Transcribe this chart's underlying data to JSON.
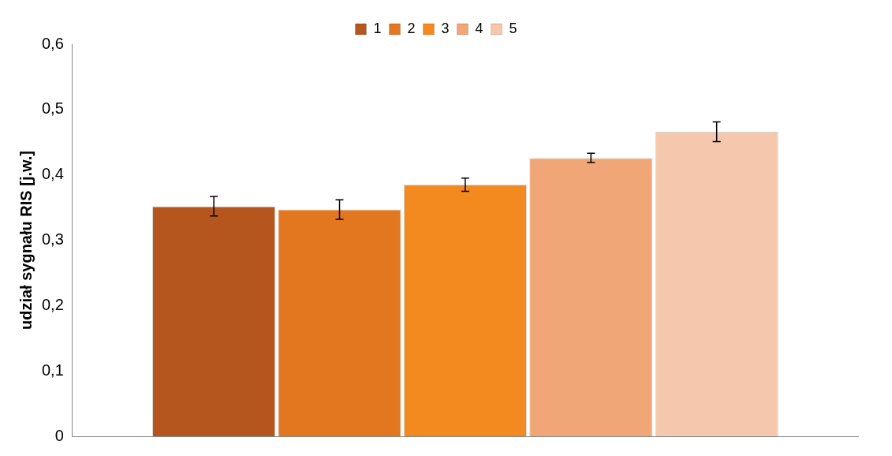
{
  "chart_data": {
    "type": "bar",
    "ylabel": "udział sygnału RIS [j.w.]",
    "categories": [
      null
    ],
    "series": [
      {
        "name": "1",
        "color": "#b5561f",
        "values": [
          0.352
        ],
        "errors": [
          0.015
        ]
      },
      {
        "name": "2",
        "color": "#e3771f",
        "values": [
          0.347
        ],
        "errors": [
          0.015
        ]
      },
      {
        "name": "3",
        "color": "#f28a1f",
        "values": [
          0.385
        ],
        "errors": [
          0.01
        ]
      },
      {
        "name": "4",
        "color": "#f0a677",
        "values": [
          0.426
        ],
        "errors": [
          0.007
        ]
      },
      {
        "name": "5",
        "color": "#f5c8ae",
        "values": [
          0.466
        ],
        "errors": [
          0.015
        ]
      }
    ],
    "ylim": [
      0,
      0.6
    ],
    "yticks": [
      {
        "value": 0,
        "label": "0"
      },
      {
        "value": 0.1,
        "label": "0,1"
      },
      {
        "value": 0.2,
        "label": "0,2"
      },
      {
        "value": 0.3,
        "label": "0,3"
      },
      {
        "value": 0.4,
        "label": "0,4"
      },
      {
        "value": 0.5,
        "label": "0,5"
      },
      {
        "value": 0.6,
        "label": "0,6"
      }
    ],
    "grid": false,
    "legend": "top"
  }
}
